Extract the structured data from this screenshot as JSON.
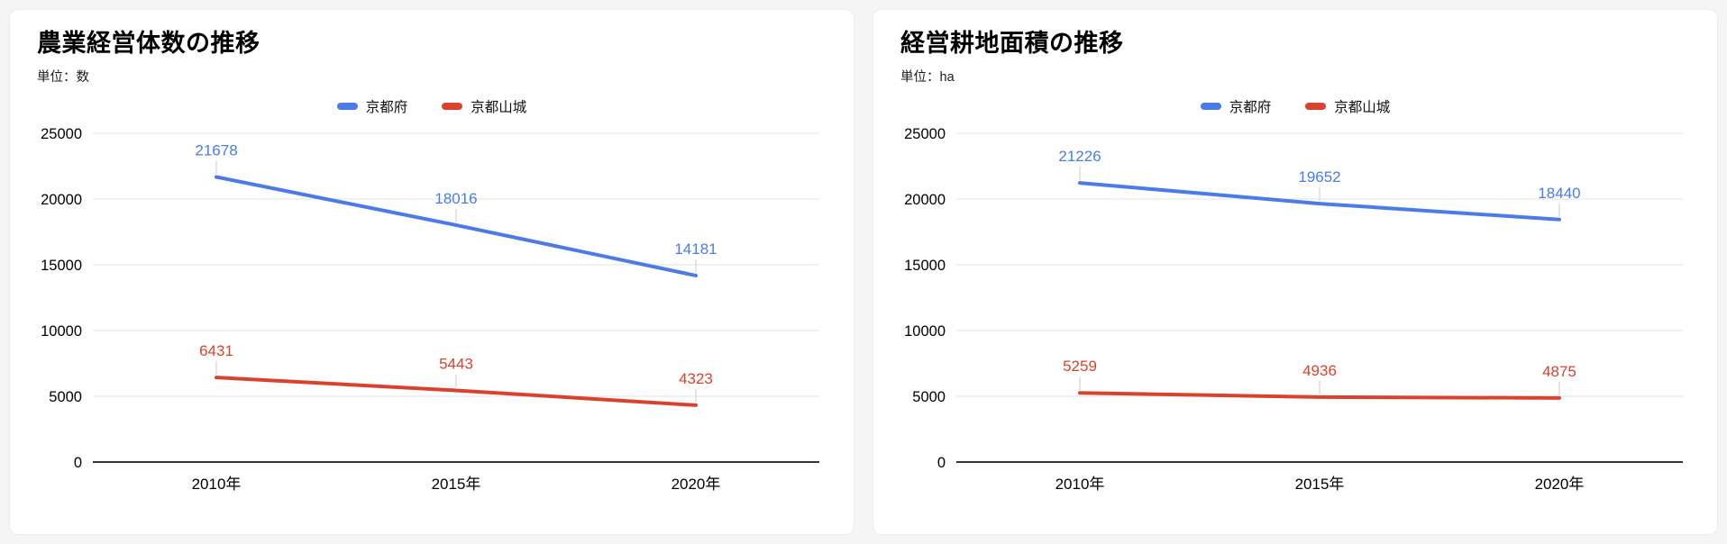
{
  "theme": {
    "page_background": "#f5f5f6",
    "card_background": "#ffffff",
    "title_color": "#000000",
    "axis_text": "#000000",
    "axis_line": "#333333",
    "gridline": "#e3e3e3",
    "annotation_stem": "#cccccc"
  },
  "chart_data": [
    {
      "type": "line",
      "title": "農業経営体数の推移",
      "unit": "単位：数",
      "legend_position": "top",
      "grid": true,
      "categories": [
        "2010年",
        "2015年",
        "2020年"
      ],
      "y_axis": {
        "min": 0,
        "max": 25000,
        "step": 5000,
        "ticks": [
          0,
          5000,
          10000,
          15000,
          20000,
          25000
        ]
      },
      "series": [
        {
          "name": "京都府",
          "color": "#4a7be8",
          "values": [
            21678,
            18016,
            14181
          ]
        },
        {
          "name": "京都山城",
          "color": "#d9432e",
          "values": [
            6431,
            5443,
            4323
          ]
        }
      ]
    },
    {
      "type": "line",
      "title": "経営耕地面積の推移",
      "unit": "単位：ha",
      "legend_position": "top",
      "grid": true,
      "categories": [
        "2010年",
        "2015年",
        "2020年"
      ],
      "y_axis": {
        "min": 0,
        "max": 25000,
        "step": 5000,
        "ticks": [
          0,
          5000,
          10000,
          15000,
          20000,
          25000
        ]
      },
      "series": [
        {
          "name": "京都府",
          "color": "#4a7be8",
          "values": [
            21226,
            19652,
            18440
          ]
        },
        {
          "name": "京都山城",
          "color": "#d9432e",
          "values": [
            5259,
            4936,
            4875
          ]
        }
      ]
    }
  ]
}
